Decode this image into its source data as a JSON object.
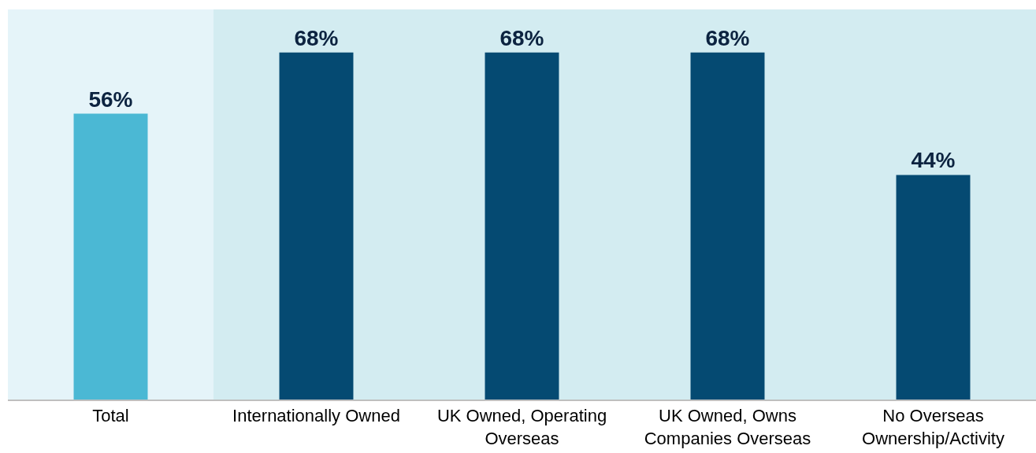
{
  "chart_data": {
    "type": "bar",
    "categories": [
      "Total",
      "Internationally Owned",
      "UK Owned, Operating Overseas",
      "UK Owned, Owns Companies Overseas",
      "No Overseas Ownership/Activity"
    ],
    "values": [
      56,
      68,
      68,
      68,
      44
    ],
    "colors": [
      "#4bb8d4",
      "#054a72",
      "#054a72",
      "#054a72",
      "#054a72"
    ],
    "value_labels": [
      "56%",
      "68%",
      "68%",
      "68%",
      "44%"
    ],
    "bands": [
      {
        "axis": "x",
        "from": "Total",
        "to": "Total",
        "color": "#e5f4f9"
      },
      {
        "axis": "x",
        "from": "Internationally Owned",
        "to": "No Overseas Ownership/Activity",
        "color": "#d3ecf1"
      }
    ]
  }
}
